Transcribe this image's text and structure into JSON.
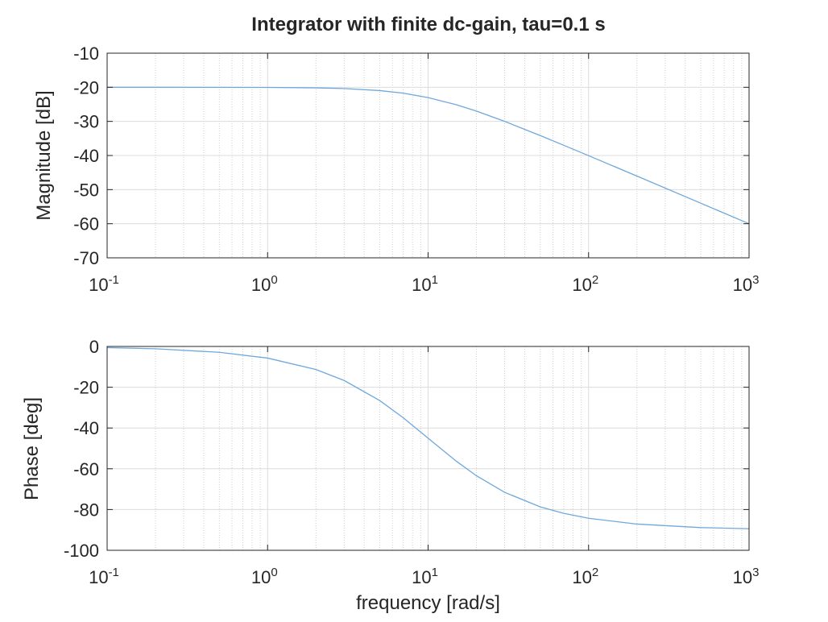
{
  "chart_data": [
    {
      "type": "line",
      "title": "Integrator with finite dc-gain, tau=0.1 s",
      "xlabel": "",
      "ylabel": "Magnitude [dB]",
      "xscale": "log",
      "xlim": [
        0.1,
        1000
      ],
      "ylim": [
        -70,
        -10
      ],
      "grid": true,
      "x_ticks": [
        {
          "base": "10",
          "exp": "-1"
        },
        {
          "base": "10",
          "exp": "0"
        },
        {
          "base": "10",
          "exp": "1"
        },
        {
          "base": "10",
          "exp": "2"
        },
        {
          "base": "10",
          "exp": "3"
        }
      ],
      "y_ticks": [
        "-10",
        "-20",
        "-30",
        "-40",
        "-50",
        "-60",
        "-70"
      ],
      "series": [
        {
          "color": "#6fa8dc",
          "x": [
            0.1,
            0.2,
            0.5,
            1,
            2,
            3,
            5,
            7,
            10,
            15,
            20,
            30,
            50,
            70,
            100,
            200,
            500,
            1000
          ],
          "y": [
            -20.0,
            -20.0,
            -20.01,
            -20.04,
            -20.17,
            -20.37,
            -20.97,
            -21.72,
            -23.01,
            -25.12,
            -26.99,
            -30.0,
            -34.15,
            -37.0,
            -40.04,
            -46.03,
            -53.98,
            -60.0
          ]
        }
      ]
    },
    {
      "type": "line",
      "title": "",
      "xlabel": "frequency [rad/s]",
      "ylabel": "Phase [deg]",
      "xscale": "log",
      "xlim": [
        0.1,
        1000
      ],
      "ylim": [
        -100,
        0
      ],
      "grid": true,
      "x_ticks": [
        {
          "base": "10",
          "exp": "-1"
        },
        {
          "base": "10",
          "exp": "0"
        },
        {
          "base": "10",
          "exp": "1"
        },
        {
          "base": "10",
          "exp": "2"
        },
        {
          "base": "10",
          "exp": "3"
        }
      ],
      "y_ticks": [
        "0",
        "-20",
        "-40",
        "-60",
        "-80",
        "-100"
      ],
      "series": [
        {
          "color": "#6fa8dc",
          "x": [
            0.1,
            0.2,
            0.5,
            1,
            2,
            3,
            5,
            7,
            10,
            15,
            20,
            30,
            50,
            70,
            100,
            200,
            500,
            1000
          ],
          "y": [
            -0.57,
            -1.15,
            -2.86,
            -5.71,
            -11.31,
            -16.7,
            -26.57,
            -34.99,
            -45.0,
            -56.31,
            -63.43,
            -71.57,
            -78.69,
            -81.87,
            -84.29,
            -87.14,
            -88.85,
            -89.43
          ]
        }
      ]
    }
  ]
}
